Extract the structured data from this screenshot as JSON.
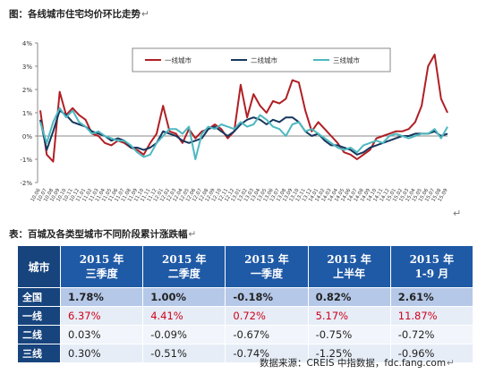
{
  "figure_caption": "图：各线城市住宅均价环比走势",
  "table_caption": "表：百城及各类型城市不同阶段累计涨跌幅",
  "chart_data": {
    "type": "line",
    "x": [
      "10.06",
      "10.07",
      "10.08",
      "10.09",
      "10.10",
      "10.11",
      "10.12",
      "11.01",
      "11.02",
      "11.03",
      "11.04",
      "11.05",
      "11.06",
      "11.07",
      "11.08",
      "11.09",
      "11.10",
      "11.11",
      "11.12",
      "12.01",
      "12.02",
      "12.03",
      "12.04",
      "12.05",
      "12.06",
      "12.07",
      "12.08",
      "12.09",
      "12.10",
      "12.11",
      "12.12",
      "13.01",
      "13.02",
      "13.03",
      "13.04",
      "13.05",
      "13.06",
      "13.07",
      "13.08",
      "13.09",
      "13.10",
      "13.11",
      "13.12",
      "14.01",
      "14.02",
      "14.03",
      "14.04",
      "14.05",
      "14.06",
      "14.07",
      "14.08",
      "14.09",
      "14.10",
      "14.11",
      "14.12",
      "15.01",
      "15.02",
      "15.03",
      "15.04",
      "15.05",
      "15.06",
      "15.07",
      "15.08",
      "15.09"
    ],
    "xlabels": [
      "10.06",
      "10.07",
      "10.08",
      "10.09",
      "10.10",
      "10.11",
      "10.12",
      "11.01",
      "11.02",
      "11.03",
      "11.04",
      "11.05",
      "11.06",
      "11.07",
      "11.08",
      "11.09",
      "11.10",
      "11.11",
      "11.12",
      "12.01",
      "12.02",
      "12.03",
      "12.04",
      "12.05",
      "12.06",
      "12.07",
      "12.08",
      "12.09",
      "12.10",
      "12.11",
      "12.12",
      "13.01",
      "13.02",
      "13.03",
      "13.04",
      "13.05",
      "13.06",
      "13.07",
      "13.08",
      "13.09",
      "13.10",
      "13.11",
      "13.12",
      "14.01",
      "14.02",
      "14.03",
      "14.04",
      "14.05",
      "14.06",
      "14.07",
      "14.08",
      "14.09",
      "14.10",
      "14.11",
      "14.12",
      "15.01",
      "15.02",
      "15.03",
      "15.04",
      "15.05",
      "15.06",
      "15.07",
      "15.08",
      "15.09"
    ],
    "yticks": [
      4,
      3,
      2,
      1,
      0,
      -1,
      -2
    ],
    "ytick_labels": [
      "4%",
      "3%",
      "2%",
      "1%",
      "0%",
      "-1%",
      "-2%"
    ],
    "ylim": [
      -2,
      4
    ],
    "series": [
      {
        "name": "一线城市",
        "color": "#b01f24",
        "values": [
          1.1,
          -0.8,
          -1.1,
          1.9,
          0.9,
          1.2,
          0.9,
          0.7,
          0.1,
          0.0,
          -0.3,
          -0.4,
          -0.2,
          -0.3,
          -0.5,
          -0.6,
          -0.8,
          -0.3,
          0.1,
          1.3,
          0.2,
          0.1,
          -0.3,
          0.3,
          -0.1,
          0.2,
          0.3,
          0.5,
          0.3,
          -0.1,
          0.2,
          2.2,
          0.8,
          1.8,
          1.3,
          1.0,
          1.5,
          1.4,
          1.6,
          2.4,
          2.3,
          1.1,
          0.2,
          0.6,
          0.3,
          0.0,
          -0.3,
          -0.7,
          -0.8,
          -1.0,
          -0.8,
          -0.6,
          -0.1,
          0.0,
          0.1,
          0.2,
          0.2,
          0.3,
          0.6,
          1.3,
          3.0,
          3.5,
          1.6,
          1.0
        ]
      },
      {
        "name": "二线城市",
        "color": "#17375e",
        "values": [
          0.7,
          -0.6,
          0.2,
          1.1,
          0.9,
          0.6,
          0.5,
          0.4,
          0.2,
          0.1,
          0.0,
          -0.2,
          -0.1,
          -0.2,
          -0.5,
          -0.5,
          -0.6,
          -0.5,
          -0.3,
          0.2,
          0.1,
          0.0,
          -0.2,
          -0.3,
          -0.2,
          -0.1,
          0.3,
          0.4,
          0.2,
          0.0,
          0.2,
          0.5,
          0.7,
          0.8,
          0.7,
          0.5,
          0.7,
          0.6,
          0.8,
          0.8,
          0.6,
          0.2,
          0.0,
          0.1,
          -0.2,
          -0.4,
          -0.4,
          -0.5,
          -0.6,
          -0.8,
          -0.7,
          -0.5,
          -0.4,
          -0.3,
          -0.2,
          -0.1,
          0.0,
          0.0,
          0.1,
          0.1,
          0.1,
          0.2,
          0.0,
          0.1
        ]
      },
      {
        "name": "三线城市",
        "color": "#4db8c0",
        "values": [
          0.6,
          -0.3,
          0.6,
          1.2,
          0.8,
          1.1,
          0.6,
          0.4,
          0.1,
          0.2,
          0.0,
          -0.1,
          -0.2,
          -0.2,
          -0.4,
          -0.7,
          -0.9,
          -0.8,
          -0.3,
          0.0,
          0.3,
          0.3,
          0.1,
          0.4,
          -1.0,
          0.1,
          0.4,
          0.3,
          0.5,
          0.4,
          0.3,
          0.6,
          0.4,
          0.5,
          0.9,
          0.7,
          0.4,
          0.3,
          0.0,
          0.5,
          0.6,
          0.2,
          0.3,
          0.1,
          -0.1,
          -0.3,
          -0.5,
          -0.6,
          -0.5,
          -0.7,
          -0.4,
          -0.3,
          -0.2,
          -0.3,
          0.0,
          0.1,
          0.0,
          -0.1,
          0.0,
          0.1,
          0.1,
          0.3,
          -0.1,
          0.4
        ]
      }
    ]
  },
  "table": {
    "corner": "城市",
    "headers": [
      {
        "l1": "2015 年",
        "l2": "三季度"
      },
      {
        "l1": "2015 年",
        "l2": "二季度"
      },
      {
        "l1": "2015 年",
        "l2": "一季度"
      },
      {
        "l1": "2015 年",
        "l2": "上半年"
      },
      {
        "l1": "2015 年",
        "l2": "1-9 月"
      }
    ],
    "rows": [
      {
        "name": "全国",
        "cells": [
          "1.78%",
          "1.00%",
          "-0.18%",
          "0.82%",
          "2.61%"
        ]
      },
      {
        "name": "一线",
        "cells": [
          "6.37%",
          "4.41%",
          "0.72%",
          "5.17%",
          "11.87%"
        ]
      },
      {
        "name": "二线",
        "cells": [
          "0.03%",
          "-0.09%",
          "-0.67%",
          "-0.75%",
          "-0.72%"
        ]
      },
      {
        "name": "三线",
        "cells": [
          "0.30%",
          "-0.51%",
          "-0.74%",
          "-1.25%",
          "-0.96%"
        ]
      }
    ]
  },
  "source": "数据来源：CREIS 中指数据，fdc.fang.com"
}
